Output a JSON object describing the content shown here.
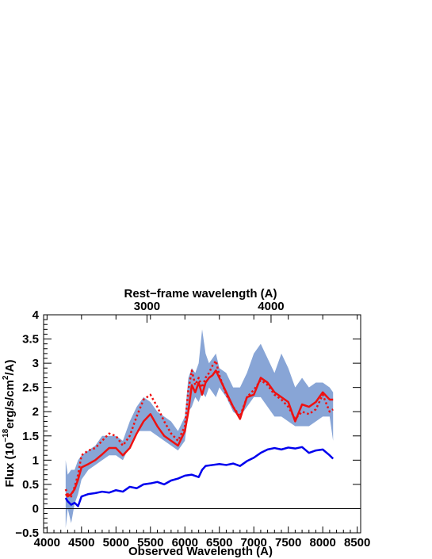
{
  "chart_data": {
    "type": "line",
    "title": "",
    "xlabel": "Observed Wavelength (A)",
    "ylabel_parts": {
      "pre": "Flux (10",
      "exp1": "−18",
      "mid": "erg/s/cm",
      "exp2": "2",
      "post": "/A)"
    },
    "top_xlabel": "Rest−frame wavelength (A)",
    "xlim": [
      3950,
      8550
    ],
    "ylim": [
      -0.5,
      4
    ],
    "x_ticks": [
      4000,
      4500,
      5000,
      5500,
      6000,
      6500,
      7000,
      7500,
      8000,
      8500
    ],
    "y_ticks": [
      -0.5,
      0,
      0.5,
      1,
      1.5,
      2,
      2.5,
      3,
      3.5,
      4
    ],
    "y_tick_labels": [
      "−0.5",
      "0",
      "0.5",
      "1",
      "1.5",
      "2",
      "2.5",
      "3",
      "3.5",
      "4"
    ],
    "top_axis": {
      "ticks_obs": [
        5450,
        7250
      ],
      "labels": [
        "3000",
        "4000"
      ]
    },
    "zero_line": 0,
    "series": [
      {
        "color": "#7b9bd1",
        "style": "band",
        "x": [
          4270,
          4300,
          4350,
          4400,
          4450,
          4500,
          4600,
          4700,
          4800,
          4900,
          5000,
          5100,
          5200,
          5300,
          5400,
          5500,
          5600,
          5700,
          5800,
          5900,
          6000,
          6050,
          6100,
          6150,
          6200,
          6250,
          6300,
          6350,
          6400,
          6450,
          6500,
          6600,
          6700,
          6800,
          6900,
          7000,
          7100,
          7200,
          7300,
          7400,
          7500,
          7600,
          7700,
          7800,
          7900,
          8000,
          8100,
          8150
        ],
        "lower": [
          -0.4,
          0.0,
          -0.3,
          0.1,
          0.3,
          0.6,
          0.8,
          0.9,
          1.0,
          1.1,
          1.1,
          1.0,
          1.3,
          1.6,
          1.6,
          1.6,
          1.5,
          1.4,
          1.3,
          1.2,
          1.4,
          2.0,
          2.1,
          2.3,
          2.2,
          2.4,
          2.3,
          2.5,
          2.4,
          2.3,
          2.5,
          2.3,
          2.0,
          1.9,
          2.1,
          2.3,
          2.3,
          2.1,
          1.9,
          1.9,
          1.8,
          1.7,
          1.7,
          1.7,
          1.8,
          1.9,
          1.9,
          1.4
        ],
        "upper": [
          1.0,
          0.7,
          0.8,
          0.8,
          1.0,
          1.1,
          1.2,
          1.3,
          1.5,
          1.5,
          1.5,
          1.4,
          1.8,
          2.1,
          2.3,
          2.2,
          2.0,
          1.9,
          1.8,
          1.6,
          1.9,
          2.7,
          2.9,
          2.8,
          3.0,
          3.7,
          3.2,
          3.0,
          3.1,
          3.2,
          2.9,
          2.8,
          2.5,
          2.5,
          2.8,
          3.2,
          3.4,
          3.1,
          2.8,
          3.2,
          2.9,
          2.5,
          2.7,
          2.5,
          2.6,
          2.6,
          2.5,
          2.4
        ]
      },
      {
        "color": "#0000ee",
        "style": "solid",
        "x": [
          4270,
          4300,
          4350,
          4400,
          4450,
          4500,
          4600,
          4700,
          4800,
          4900,
          5000,
          5100,
          5200,
          5300,
          5400,
          5500,
          5600,
          5700,
          5800,
          5900,
          6000,
          6100,
          6200,
          6250,
          6300,
          6400,
          6500,
          6600,
          6700,
          6800,
          6900,
          7000,
          7100,
          7200,
          7300,
          7400,
          7500,
          7600,
          7700,
          7800,
          7900,
          8000,
          8100,
          8150
        ],
        "y": [
          0.22,
          0.15,
          0.08,
          0.12,
          0.05,
          0.25,
          0.3,
          0.32,
          0.35,
          0.33,
          0.38,
          0.35,
          0.45,
          0.42,
          0.5,
          0.52,
          0.55,
          0.5,
          0.58,
          0.62,
          0.68,
          0.7,
          0.65,
          0.8,
          0.88,
          0.9,
          0.92,
          0.9,
          0.93,
          0.88,
          0.98,
          1.05,
          1.15,
          1.22,
          1.25,
          1.22,
          1.26,
          1.24,
          1.27,
          1.15,
          1.2,
          1.22,
          1.1,
          1.03
        ]
      },
      {
        "color": "#ee1111",
        "style": "solid",
        "x": [
          4270,
          4300,
          4350,
          4400,
          4450,
          4500,
          4600,
          4700,
          4800,
          4900,
          5000,
          5100,
          5200,
          5300,
          5400,
          5500,
          5600,
          5700,
          5800,
          5900,
          6000,
          6050,
          6100,
          6150,
          6200,
          6250,
          6300,
          6350,
          6400,
          6450,
          6500,
          6600,
          6700,
          6800,
          6900,
          7000,
          7100,
          7200,
          7300,
          7400,
          7500,
          7600,
          7700,
          7800,
          7900,
          8000,
          8100,
          8150
        ],
        "y": [
          0.3,
          0.25,
          0.3,
          0.4,
          0.6,
          0.85,
          0.92,
          1.0,
          1.12,
          1.25,
          1.25,
          1.1,
          1.25,
          1.55,
          1.8,
          1.95,
          1.7,
          1.5,
          1.4,
          1.3,
          1.6,
          2.0,
          2.55,
          2.4,
          2.6,
          2.35,
          2.6,
          2.7,
          2.75,
          2.85,
          2.7,
          2.4,
          2.1,
          1.85,
          2.3,
          2.35,
          2.7,
          2.6,
          2.4,
          2.3,
          2.2,
          1.8,
          2.15,
          2.1,
          2.2,
          2.4,
          2.25,
          2.25
        ]
      },
      {
        "color": "#ee1111",
        "style": "dotted",
        "x": [
          4270,
          4300,
          4350,
          4400,
          4450,
          4500,
          4600,
          4700,
          4800,
          4900,
          5000,
          5100,
          5200,
          5300,
          5400,
          5500,
          5600,
          5700,
          5800,
          5900,
          6000,
          6050,
          6100,
          6150,
          6200,
          6250,
          6300,
          6350,
          6400,
          6450,
          6500,
          6600,
          6700,
          6800,
          6900,
          7000,
          7100,
          7200,
          7300,
          7400,
          7500,
          7600,
          7700,
          7800,
          7900,
          8000,
          8100,
          8150
        ],
        "y": [
          0.4,
          0.3,
          0.25,
          0.45,
          0.7,
          1.1,
          1.2,
          1.25,
          1.4,
          1.55,
          1.5,
          1.3,
          1.5,
          1.9,
          2.25,
          2.35,
          2.1,
          1.8,
          1.55,
          1.4,
          1.7,
          2.45,
          2.85,
          2.55,
          2.7,
          2.5,
          2.7,
          2.8,
          2.95,
          3.05,
          2.75,
          2.35,
          2.1,
          1.9,
          2.3,
          2.45,
          2.65,
          2.55,
          2.35,
          2.25,
          2.1,
          1.85,
          2.0,
          1.95,
          2.05,
          2.35,
          2.0,
          2.05
        ]
      }
    ]
  }
}
